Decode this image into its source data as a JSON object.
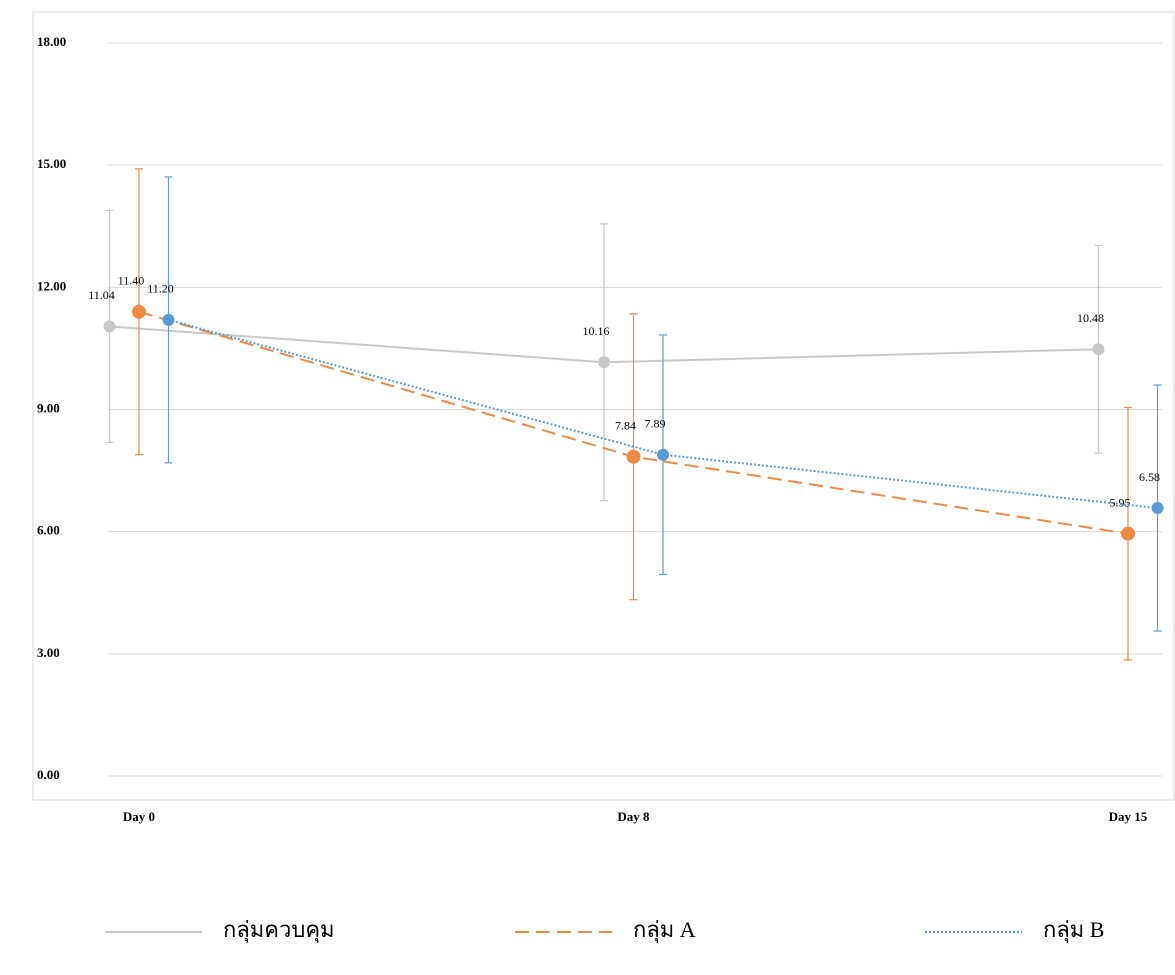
{
  "chart_data": {
    "type": "line",
    "categories": [
      "Day 0",
      "Day 8",
      "Day 15"
    ],
    "ylim": [
      0,
      18
    ],
    "yticks": [
      {
        "value": 0,
        "label": "0.00"
      },
      {
        "value": 3,
        "label": "3.00"
      },
      {
        "value": 6,
        "label": "6.00"
      },
      {
        "value": 9,
        "label": "9.00"
      },
      {
        "value": 12,
        "label": "12.00"
      },
      {
        "value": 15,
        "label": "15.00"
      },
      {
        "value": 18,
        "label": "18.00"
      }
    ],
    "grid": true,
    "legend": "bottom",
    "series": [
      {
        "name": "กลุ่มควบคุม",
        "color": "#c8c8c8",
        "style": "solid",
        "values": [
          11.04,
          10.16,
          10.48
        ],
        "value_labels": [
          "11.04",
          "10.16",
          "10.48"
        ],
        "errors": [
          2.85,
          3.4,
          2.55
        ]
      },
      {
        "name": "กลุ่ม A",
        "color": "#ed8b45",
        "style": "dashed",
        "values": [
          11.4,
          7.84,
          5.95
        ],
        "value_labels": [
          "11.40",
          "7.84",
          "5.95"
        ],
        "errors": [
          3.51,
          3.51,
          3.1
        ]
      },
      {
        "name": "กลุ่ม B",
        "color": "#5b9bd5",
        "style": "dotted",
        "values": [
          11.2,
          7.89,
          6.58
        ],
        "value_labels": [
          "11.20",
          "7.89",
          "6.58"
        ],
        "errors": [
          3.51,
          2.94,
          3.02
        ]
      }
    ]
  }
}
